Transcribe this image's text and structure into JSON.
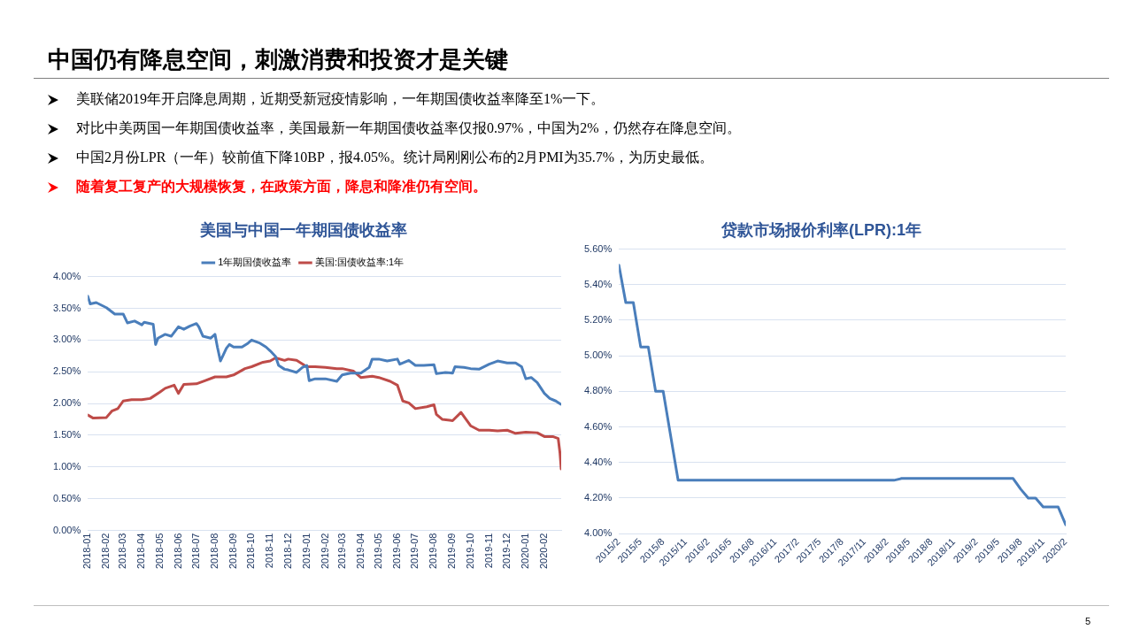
{
  "chart_data": [
    {
      "type": "other",
      "title": "中国仍有降息空间，刺激消费和投资才是关键",
      "annotations": [
        "美联储2019年开启降息周期，近期受新冠疫情影响，一年期国债收益率降至1%一下。",
        "对比中美两国一年期国债收益率，美国最新一年期国债收益率仅报0.97%，中国为2%，仍然存在降息空间。",
        "中国2月份LPR（一年）较前值下降10BP，报4.05%。统计局刚刚公布的2月PMI为35.7%，为历史最低。",
        "随着复工复产的大规模恢复，在政策方面，降息和降准仍有空间。",
        "5"
      ]
    },
    {
      "type": "line",
      "title": "美国与中国一年期国债收益率",
      "legend": "top",
      "grid": "y",
      "marker": "none",
      "line_style": "solid",
      "xlim": [
        "2018-01-01",
        "2020-02-29"
      ],
      "xticks": [
        "2018-01",
        "2018-02",
        "2018-03",
        "2018-04",
        "2018-05",
        "2018-06",
        "2018-07",
        "2018-08",
        "2018-09",
        "2018-10",
        "2018-11",
        "2018-12",
        "2019-01",
        "2019-02",
        "2019-03",
        "2019-04",
        "2019-05",
        "2019-06",
        "2019-07",
        "2019-08",
        "2019-09",
        "2019-10",
        "2019-11",
        "2019-12",
        "2020-01",
        "2020-02"
      ],
      "ylim": [
        0,
        4
      ],
      "yticks": [
        {
          "value": 0,
          "label": "0.00%"
        },
        {
          "value": 0.5,
          "label": "0.50%"
        },
        {
          "value": 1,
          "label": "1.00%"
        },
        {
          "value": 1.5,
          "label": "1.50%"
        },
        {
          "value": 2,
          "label": "2.00%"
        },
        {
          "value": 2.5,
          "label": "2.50%"
        },
        {
          "value": 3,
          "label": "3.00%"
        },
        {
          "value": 3.5,
          "label": "3.50%"
        },
        {
          "value": 4,
          "label": "4.00%"
        }
      ],
      "series": [
        {
          "name": "1年期国债收益率",
          "color": "#4a7ebb",
          "x": [
            "2018-01-01",
            "2018-01-05",
            "2018-01-15",
            "2018-02-01",
            "2018-02-15",
            "2018-03-01",
            "2018-03-08",
            "2018-03-20",
            "2018-04-01",
            "2018-04-05",
            "2018-04-20",
            "2018-04-24",
            "2018-04-28",
            "2018-05-10",
            "2018-05-20",
            "2018-06-01",
            "2018-06-10",
            "2018-06-20",
            "2018-07-01",
            "2018-07-05",
            "2018-07-12",
            "2018-07-25",
            "2018-08-01",
            "2018-08-05",
            "2018-08-10",
            "2018-08-20",
            "2018-08-25",
            "2018-09-01",
            "2018-09-15",
            "2018-09-25",
            "2018-10-01",
            "2018-10-15",
            "2018-10-25",
            "2018-11-01",
            "2018-11-10",
            "2018-11-15",
            "2018-11-25",
            "2018-12-01",
            "2018-12-15",
            "2018-12-25",
            "2019-01-01",
            "2019-01-05",
            "2019-01-15",
            "2019-02-01",
            "2019-02-20",
            "2019-03-01",
            "2019-03-15",
            "2019-04-01",
            "2019-04-15",
            "2019-04-20",
            "2019-05-01",
            "2019-05-15",
            "2019-06-01",
            "2019-06-05",
            "2019-06-20",
            "2019-07-01",
            "2019-07-15",
            "2019-08-01",
            "2019-08-05",
            "2019-08-20",
            "2019-09-01",
            "2019-09-05",
            "2019-09-20",
            "2019-10-01",
            "2019-10-15",
            "2019-11-01",
            "2019-11-15",
            "2019-12-01",
            "2019-12-15",
            "2019-12-25",
            "2020-01-01",
            "2020-01-10",
            "2020-01-20",
            "2020-02-01",
            "2020-02-10",
            "2020-02-20",
            "2020-02-28"
          ],
          "values": [
            3.69,
            3.57,
            3.59,
            3.51,
            3.41,
            3.41,
            3.27,
            3.3,
            3.24,
            3.28,
            3.25,
            2.93,
            3.03,
            3.09,
            3.06,
            3.21,
            3.17,
            3.22,
            3.26,
            3.21,
            3.06,
            3.03,
            3.09,
            2.89,
            2.67,
            2.87,
            2.93,
            2.89,
            2.89,
            2.95,
            3.0,
            2.95,
            2.89,
            2.83,
            2.74,
            2.6,
            2.54,
            2.53,
            2.49,
            2.57,
            2.6,
            2.36,
            2.39,
            2.39,
            2.35,
            2.45,
            2.48,
            2.48,
            2.57,
            2.7,
            2.7,
            2.67,
            2.7,
            2.62,
            2.68,
            2.6,
            2.6,
            2.61,
            2.47,
            2.49,
            2.48,
            2.58,
            2.57,
            2.55,
            2.54,
            2.62,
            2.67,
            2.64,
            2.64,
            2.58,
            2.39,
            2.41,
            2.33,
            2.16,
            2.08,
            2.04,
            1.99
          ]
        },
        {
          "name": "美国:国债收益率:1年",
          "color": "#be4b48",
          "x": [
            "2018-01-01",
            "2018-01-10",
            "2018-02-01",
            "2018-02-10",
            "2018-02-20",
            "2018-03-01",
            "2018-03-15",
            "2018-04-01",
            "2018-04-15",
            "2018-05-01",
            "2018-05-10",
            "2018-05-25",
            "2018-06-01",
            "2018-06-10",
            "2018-07-01",
            "2018-07-15",
            "2018-08-01",
            "2018-08-20",
            "2018-09-01",
            "2018-09-20",
            "2018-10-01",
            "2018-10-20",
            "2018-11-01",
            "2018-11-10",
            "2018-11-25",
            "2018-12-01",
            "2018-12-15",
            "2019-01-01",
            "2019-01-15",
            "2019-02-01",
            "2019-02-20",
            "2019-03-01",
            "2019-03-20",
            "2019-04-01",
            "2019-04-20",
            "2019-05-01",
            "2019-05-20",
            "2019-06-01",
            "2019-06-10",
            "2019-06-20",
            "2019-07-01",
            "2019-07-20",
            "2019-08-01",
            "2019-08-05",
            "2019-08-15",
            "2019-09-01",
            "2019-09-15",
            "2019-10-01",
            "2019-10-15",
            "2019-11-01",
            "2019-11-15",
            "2019-12-01",
            "2019-12-15",
            "2020-01-01",
            "2020-01-20",
            "2020-02-01",
            "2020-02-15",
            "2020-02-24",
            "2020-02-27",
            "2020-02-29"
          ],
          "values": [
            1.82,
            1.77,
            1.78,
            1.88,
            1.92,
            2.04,
            2.06,
            2.06,
            2.08,
            2.18,
            2.24,
            2.29,
            2.16,
            2.3,
            2.31,
            2.36,
            2.42,
            2.42,
            2.45,
            2.55,
            2.58,
            2.65,
            2.67,
            2.72,
            2.68,
            2.7,
            2.68,
            2.58,
            2.58,
            2.57,
            2.55,
            2.55,
            2.51,
            2.41,
            2.43,
            2.41,
            2.35,
            2.29,
            2.04,
            2.01,
            1.92,
            1.95,
            1.98,
            1.83,
            1.75,
            1.73,
            1.86,
            1.65,
            1.58,
            1.58,
            1.57,
            1.58,
            1.53,
            1.55,
            1.54,
            1.48,
            1.48,
            1.45,
            1.22,
            0.97
          ]
        }
      ]
    },
    {
      "type": "line",
      "title": "贷款市场报价利率(LPR):1年",
      "grid": "y",
      "marker": "none",
      "line_style": "solid",
      "xlim": [
        "2015-02",
        "2020-02"
      ],
      "xticks": [
        {
          "value": "2015-02",
          "label": "2015/2"
        },
        {
          "value": "2015-05",
          "label": "2015/5"
        },
        {
          "value": "2015-08",
          "label": "2015/8"
        },
        {
          "value": "2015-11",
          "label": "2015/11"
        },
        {
          "value": "2016-02",
          "label": "2016/2"
        },
        {
          "value": "2016-05",
          "label": "2016/5"
        },
        {
          "value": "2016-08",
          "label": "2016/8"
        },
        {
          "value": "2016-11",
          "label": "2016/11"
        },
        {
          "value": "2017-02",
          "label": "2017/2"
        },
        {
          "value": "2017-05",
          "label": "2017/5"
        },
        {
          "value": "2017-08",
          "label": "2017/8"
        },
        {
          "value": "2017-11",
          "label": "2017/11"
        },
        {
          "value": "2018-02",
          "label": "2018/2"
        },
        {
          "value": "2018-05",
          "label": "2018/5"
        },
        {
          "value": "2018-08",
          "label": "2018/8"
        },
        {
          "value": "2018-11",
          "label": "2018/11"
        },
        {
          "value": "2019-02",
          "label": "2019/2"
        },
        {
          "value": "2019-05",
          "label": "2019/5"
        },
        {
          "value": "2019-08",
          "label": "2019/8"
        },
        {
          "value": "2019-11",
          "label": "2019/11"
        },
        {
          "value": "2020-02",
          "label": "2020/2"
        }
      ],
      "ylim": [
        4,
        5.6
      ],
      "yticks": [
        {
          "value": 4,
          "label": "4.00%"
        },
        {
          "value": 4.2,
          "label": "4.20%"
        },
        {
          "value": 4.4,
          "label": "4.40%"
        },
        {
          "value": 4.6,
          "label": "4.60%"
        },
        {
          "value": 4.8,
          "label": "4.80%"
        },
        {
          "value": 5,
          "label": "5.00%"
        },
        {
          "value": 5.2,
          "label": "5.20%"
        },
        {
          "value": 5.4,
          "label": "5.40%"
        },
        {
          "value": 5.6,
          "label": "5.60%"
        }
      ],
      "series": [
        {
          "color": "#4a7ebb",
          "x": [
            "2015-02",
            "2015-03",
            "2015-04",
            "2015-05",
            "2015-06",
            "2015-07",
            "2015-08",
            "2015-10",
            "2018-03",
            "2018-04",
            "2019-07",
            "2019-08",
            "2019-09",
            "2019-10",
            "2019-11",
            "2020-01",
            "2020-02"
          ],
          "values": [
            5.51,
            5.3,
            5.3,
            5.05,
            5.05,
            4.8,
            4.8,
            4.3,
            4.3,
            4.31,
            4.31,
            4.25,
            4.2,
            4.2,
            4.15,
            4.15,
            4.05
          ]
        }
      ]
    }
  ]
}
